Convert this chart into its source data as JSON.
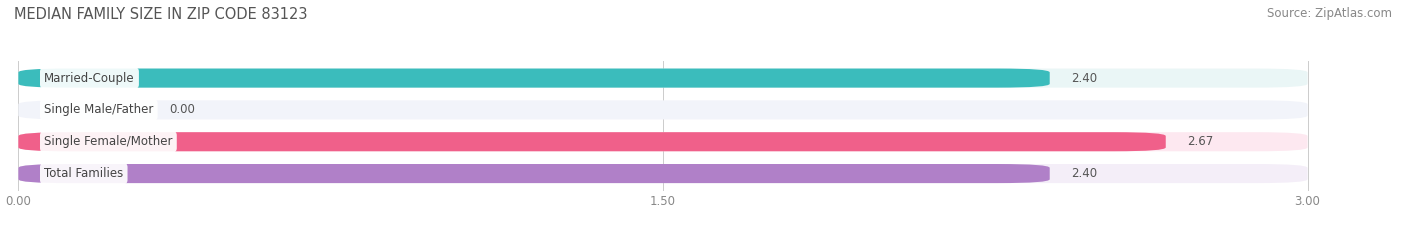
{
  "title": "MEDIAN FAMILY SIZE IN ZIP CODE 83123",
  "source": "Source: ZipAtlas.com",
  "categories": [
    "Married-Couple",
    "Single Male/Father",
    "Single Female/Mother",
    "Total Families"
  ],
  "values": [
    2.4,
    0.0,
    2.67,
    2.4
  ],
  "bar_colors": [
    "#3bbcbc",
    "#a8b8e0",
    "#f0608a",
    "#b080c8"
  ],
  "bar_bg_colors": [
    "#eaf6f6",
    "#f2f4fa",
    "#fde8f0",
    "#f4eef8"
  ],
  "xlim_min": 0.0,
  "xlim_max": 3.0,
  "xticks": [
    0.0,
    1.5,
    3.0
  ],
  "xtick_labels": [
    "0.00",
    "1.50",
    "3.00"
  ],
  "figsize": [
    14.06,
    2.33
  ],
  "dpi": 100,
  "title_fontsize": 10.5,
  "label_fontsize": 8.5,
  "value_fontsize": 8.5,
  "tick_fontsize": 8.5,
  "source_fontsize": 8.5,
  "bg_color": "#ffffff"
}
